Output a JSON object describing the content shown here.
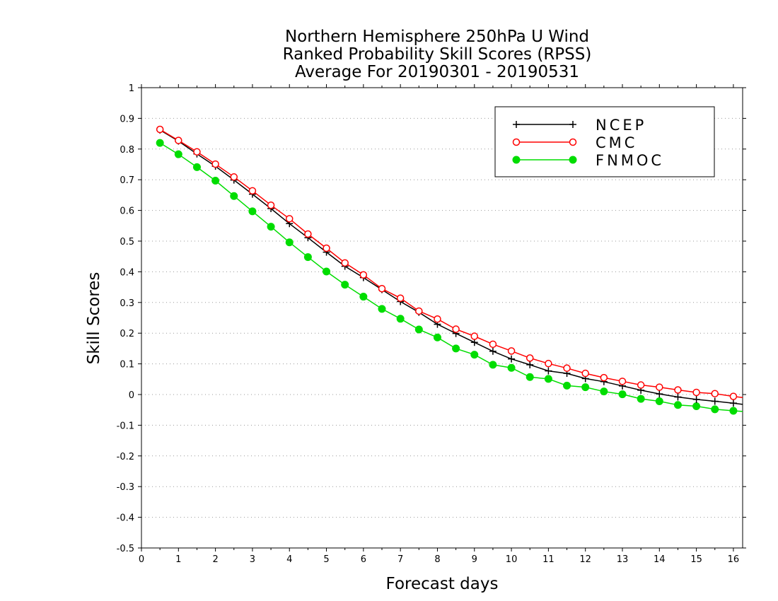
{
  "chart_data": {
    "type": "line",
    "title": [
      "Northern Hemisphere 250hPa U Wind",
      "Ranked Probability Skill Scores (RPSS)",
      "Average For 20190301 - 20190531"
    ],
    "xlabel": "Forecast days",
    "ylabel": "Skill Scores",
    "xlim": [
      0,
      16.25
    ],
    "ylim": [
      -0.5,
      1
    ],
    "xticks": [
      0,
      1,
      2,
      3,
      4,
      5,
      6,
      7,
      8,
      9,
      10,
      11,
      12,
      13,
      14,
      15,
      16
    ],
    "yticks": [
      -0.5,
      -0.4,
      -0.3,
      -0.2,
      -0.1,
      0,
      0.1,
      0.2,
      0.3,
      0.4,
      0.5,
      0.6,
      0.7,
      0.8,
      0.9,
      1
    ],
    "ytick_labels": [
      "-0.5",
      "-0.4",
      "-0.3",
      "-0.2",
      "-0.1",
      "0",
      "0.1",
      "0.2",
      "0.3",
      "0.4",
      "0.5",
      "0.6",
      "0.7",
      "0.8",
      "0.9",
      "1"
    ],
    "grid": "horizontal dotted",
    "legend_position": "top-right",
    "x": [
      0.5,
      1.0,
      1.5,
      2.0,
      2.5,
      3.0,
      3.5,
      4.0,
      4.5,
      5.0,
      5.5,
      6.0,
      6.5,
      7.0,
      7.5,
      8.0,
      8.5,
      9.0,
      9.5,
      10.0,
      10.5,
      11.0,
      11.5,
      12.0,
      12.5,
      13.0,
      13.5,
      14.0,
      14.5,
      15.0,
      15.5,
      16.0,
      16.25
    ],
    "series": [
      {
        "name": "NCEP",
        "color": "#000000",
        "marker": "plus",
        "values": [
          0.862,
          0.826,
          0.784,
          0.744,
          0.699,
          0.653,
          0.606,
          0.557,
          0.511,
          0.464,
          0.418,
          0.381,
          0.342,
          0.303,
          0.268,
          0.229,
          0.199,
          0.17,
          0.141,
          0.116,
          0.097,
          0.077,
          0.069,
          0.052,
          0.042,
          0.028,
          0.014,
          0.002,
          -0.008,
          -0.016,
          -0.022,
          -0.028,
          -0.032
        ]
      },
      {
        "name": "CMC",
        "color": "#ff0000",
        "marker": "open-circle",
        "values": [
          0.864,
          0.828,
          0.791,
          0.751,
          0.709,
          0.664,
          0.617,
          0.573,
          0.523,
          0.477,
          0.429,
          0.39,
          0.345,
          0.314,
          0.272,
          0.246,
          0.213,
          0.19,
          0.164,
          0.142,
          0.119,
          0.101,
          0.086,
          0.069,
          0.055,
          0.043,
          0.031,
          0.024,
          0.015,
          0.007,
          0.003,
          -0.006,
          -0.01
        ]
      },
      {
        "name": "FNMOC",
        "color": "#00dd00",
        "marker": "filled-circle",
        "values": [
          0.82,
          0.783,
          0.741,
          0.697,
          0.647,
          0.597,
          0.547,
          0.496,
          0.448,
          0.401,
          0.358,
          0.319,
          0.279,
          0.247,
          0.212,
          0.186,
          0.15,
          0.13,
          0.097,
          0.087,
          0.057,
          0.051,
          0.029,
          0.024,
          0.01,
          0.001,
          -0.014,
          -0.022,
          -0.034,
          -0.038,
          -0.048,
          -0.053,
          -0.055
        ]
      }
    ]
  }
}
